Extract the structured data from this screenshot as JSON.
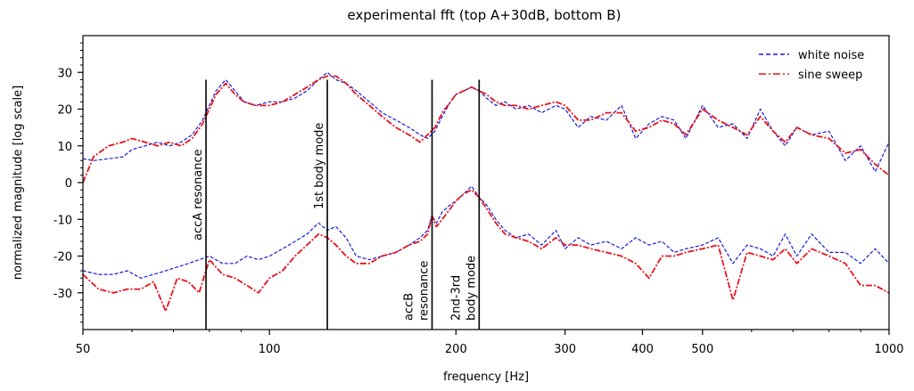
{
  "chart_data": {
    "type": "line",
    "title": "experimental fft (top A+30dB, bottom B)",
    "xlabel": "frequency [Hz]",
    "ylabel": "normalized magnitude [log scale]",
    "xscale": "log",
    "xlim": [
      50,
      1000
    ],
    "ylim": [
      -40,
      40
    ],
    "xticks": [
      {
        "value": 50,
        "label": "50"
      },
      {
        "value": 100,
        "label": "100"
      },
      {
        "value": 200,
        "label": "200"
      },
      {
        "value": 300,
        "label": "300"
      },
      {
        "value": 400,
        "label": "400"
      },
      {
        "value": 500,
        "label": "500"
      },
      {
        "value": 1000,
        "label": "1000"
      }
    ],
    "yticks": [
      {
        "value": 30,
        "label": "30"
      },
      {
        "value": 20,
        "label": "20"
      },
      {
        "value": 10,
        "label": "10"
      },
      {
        "value": 0,
        "label": "0"
      },
      {
        "value": -10,
        "label": "-10"
      },
      {
        "value": -20,
        "label": "-20"
      },
      {
        "value": -30,
        "label": "-30"
      }
    ],
    "grid": false,
    "legend": {
      "placement": "top-right"
    },
    "series": [
      {
        "name": "white noise",
        "color": "#1a1adc",
        "style": "dashed",
        "x": [
          50,
          52,
          55,
          58,
          60,
          63,
          66,
          69,
          72,
          75,
          78,
          82,
          85,
          88,
          91,
          95,
          100,
          105,
          110,
          115,
          120,
          124,
          128,
          133,
          138,
          145,
          152,
          160,
          168,
          175,
          180,
          185,
          190,
          196,
          200,
          206,
          212,
          218,
          224,
          232,
          240,
          250,
          262,
          275,
          290,
          300,
          315,
          330,
          350,
          370,
          390,
          410,
          430,
          450,
          470,
          500,
          530,
          560,
          590,
          620,
          650,
          680,
          710,
          750,
          800,
          850,
          900,
          950,
          1000
        ],
        "values": [
          6.5,
          6,
          6.5,
          7,
          9,
          10,
          11,
          10,
          11,
          13,
          17,
          25,
          28,
          25,
          22,
          21,
          22,
          22,
          23,
          25,
          28,
          30,
          28,
          27,
          25,
          22,
          19,
          17,
          15,
          13,
          12,
          14,
          18,
          22,
          24,
          25,
          26,
          25,
          23,
          21,
          22,
          20,
          21,
          19,
          21,
          20,
          15,
          18,
          17,
          21,
          12,
          16,
          18,
          17,
          12,
          21,
          15,
          16,
          12,
          20,
          14,
          10,
          15,
          13,
          14,
          6,
          10,
          3,
          11
        ]
      },
      {
        "name": "sine sweep",
        "color": "#e8121a",
        "style": "dashdot",
        "x": [
          50,
          52,
          55,
          58,
          60,
          63,
          66,
          69,
          72,
          75,
          78,
          82,
          85,
          88,
          91,
          95,
          100,
          105,
          110,
          115,
          120,
          124,
          128,
          133,
          138,
          145,
          152,
          160,
          168,
          175,
          180,
          185,
          190,
          196,
          200,
          206,
          212,
          218,
          224,
          232,
          240,
          250,
          262,
          275,
          290,
          300,
          315,
          330,
          350,
          370,
          390,
          410,
          430,
          450,
          470,
          500,
          530,
          560,
          590,
          620,
          650,
          680,
          710,
          750,
          800,
          850,
          900,
          950,
          1000
        ],
        "values": [
          0,
          7,
          10,
          11,
          12,
          11,
          10,
          11,
          10,
          12,
          16,
          24,
          27,
          24,
          22,
          21,
          21,
          22,
          24,
          26,
          28,
          29,
          29,
          27,
          24,
          21,
          18,
          15,
          13,
          11,
          13,
          15,
          19,
          22,
          24,
          25,
          26,
          25,
          24,
          22,
          21,
          21,
          20,
          21,
          22,
          21,
          17,
          17,
          19,
          19,
          14,
          15,
          17,
          16,
          13,
          20,
          17,
          15,
          13,
          18,
          14,
          11,
          15,
          13,
          12,
          8,
          9,
          5,
          2
        ]
      },
      {
        "name": "white noise",
        "color": "#1a1adc",
        "style": "dashed",
        "x": [
          50,
          53,
          56,
          59,
          62,
          65,
          68,
          71,
          74,
          77,
          80,
          84,
          88,
          92,
          96,
          100,
          105,
          110,
          115,
          120,
          124,
          128,
          133,
          138,
          145,
          152,
          160,
          168,
          175,
          180,
          183,
          186,
          190,
          196,
          200,
          206,
          212,
          218,
          224,
          232,
          240,
          250,
          262,
          275,
          290,
          300,
          315,
          330,
          350,
          370,
          390,
          410,
          430,
          450,
          470,
          500,
          530,
          560,
          590,
          620,
          650,
          680,
          710,
          750,
          800,
          850,
          900,
          950,
          1000
        ],
        "values": [
          -24,
          -25,
          -25,
          -24,
          -26,
          -25,
          -24,
          -23,
          -22,
          -21,
          -20,
          -22,
          -22,
          -20,
          -21,
          -20,
          -18,
          -16,
          -14,
          -11,
          -13,
          -12,
          -15,
          -20,
          -21,
          -20,
          -19,
          -17,
          -15,
          -13,
          -9,
          -11,
          -8,
          -6,
          -5,
          -3,
          -1,
          -4,
          -6,
          -10,
          -13,
          -15,
          -14,
          -17,
          -13,
          -18,
          -15,
          -17,
          -16,
          -18,
          -15,
          -17,
          -16,
          -19,
          -18,
          -17,
          -15,
          -22,
          -17,
          -18,
          -20,
          -14,
          -20,
          -14,
          -19,
          -19,
          -22,
          -18,
          -22
        ]
      },
      {
        "name": "sine sweep",
        "color": "#e8121a",
        "style": "dashdot",
        "x": [
          50,
          53,
          56,
          59,
          62,
          65,
          68,
          71,
          74,
          77,
          80,
          84,
          88,
          92,
          96,
          100,
          105,
          110,
          115,
          120,
          124,
          128,
          133,
          138,
          145,
          152,
          160,
          168,
          175,
          180,
          183,
          186,
          190,
          196,
          200,
          206,
          212,
          218,
          224,
          232,
          240,
          250,
          262,
          275,
          290,
          300,
          315,
          330,
          350,
          370,
          390,
          410,
          430,
          450,
          470,
          500,
          530,
          560,
          590,
          620,
          650,
          680,
          710,
          750,
          800,
          850,
          900,
          950,
          1000
        ],
        "values": [
          -25,
          -29,
          -30,
          -29,
          -29,
          -27,
          -35,
          -26,
          -27,
          -30,
          -21,
          -25,
          -26,
          -28,
          -30,
          -26,
          -24,
          -20,
          -17,
          -14,
          -15,
          -17,
          -20,
          -22,
          -22,
          -20,
          -19,
          -17,
          -16,
          -14,
          -9,
          -12,
          -10,
          -7,
          -5,
          -3,
          -2,
          -4,
          -7,
          -11,
          -14,
          -15,
          -16,
          -18,
          -15,
          -17,
          -17,
          -18,
          -19,
          -20,
          -22,
          -26,
          -20,
          -20,
          -19,
          -18,
          -17,
          -32,
          -19,
          -20,
          -21,
          -18,
          -22,
          -18,
          -20,
          -22,
          -28,
          -28,
          -30
        ]
      }
    ],
    "annotations": [
      {
        "x": 79,
        "lines": [
          "accA resonance"
        ]
      },
      {
        "x": 124,
        "lines": [
          "1st body mode"
        ]
      },
      {
        "x": 183,
        "lines": [
          "accB",
          "resonance"
        ]
      },
      {
        "x": 218,
        "lines": [
          "2nd-3rd",
          "body mode"
        ]
      }
    ]
  }
}
